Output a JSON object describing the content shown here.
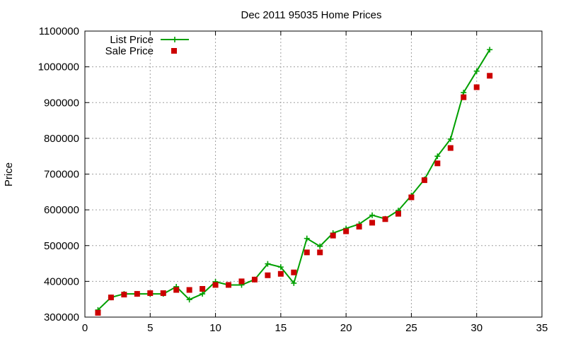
{
  "chart_data": {
    "type": "line",
    "title": "Dec 2011 95035 Home Prices",
    "xlabel": "",
    "ylabel": "Price",
    "xlim": [
      0,
      35
    ],
    "ylim": [
      300000,
      1100000
    ],
    "x_ticks": [
      0,
      5,
      10,
      15,
      20,
      25,
      30,
      35
    ],
    "y_ticks": [
      300000,
      400000,
      500000,
      600000,
      700000,
      800000,
      900000,
      1000000,
      1100000
    ],
    "grid": true,
    "legend_position": "top-left",
    "series": [
      {
        "name": "List Price",
        "style": "line-with-plus-markers",
        "color": "#00a000",
        "points": [
          [
            1,
            320000
          ],
          [
            2,
            355000
          ],
          [
            3,
            365000
          ],
          [
            4,
            365000
          ],
          [
            5,
            365000
          ],
          [
            6,
            365000
          ],
          [
            7,
            385000
          ],
          [
            8,
            349000
          ],
          [
            9,
            365000
          ],
          [
            10,
            399000
          ],
          [
            11,
            390000
          ],
          [
            12,
            390000
          ],
          [
            13,
            405000
          ],
          [
            14,
            449000
          ],
          [
            15,
            440000
          ],
          [
            16,
            395000
          ],
          [
            17,
            520000
          ],
          [
            18,
            498000
          ],
          [
            19,
            535000
          ],
          [
            20,
            548000
          ],
          [
            21,
            560000
          ],
          [
            22,
            585000
          ],
          [
            23,
            575000
          ],
          [
            24,
            598000
          ],
          [
            25,
            640000
          ],
          [
            26,
            685000
          ],
          [
            27,
            750000
          ],
          [
            28,
            798000
          ],
          [
            29,
            928000
          ],
          [
            30,
            988000
          ],
          [
            31,
            1048000
          ]
        ]
      },
      {
        "name": "Sale Price",
        "style": "square-markers",
        "color": "#cc0000",
        "points": [
          [
            1,
            312000
          ],
          [
            2,
            355000
          ],
          [
            3,
            363000
          ],
          [
            4,
            365000
          ],
          [
            5,
            367000
          ],
          [
            6,
            367000
          ],
          [
            7,
            376000
          ],
          [
            8,
            376000
          ],
          [
            9,
            379000
          ],
          [
            10,
            390000
          ],
          [
            11,
            390000
          ],
          [
            12,
            400000
          ],
          [
            13,
            405000
          ],
          [
            14,
            417000
          ],
          [
            15,
            421000
          ],
          [
            16,
            425000
          ],
          [
            17,
            481000
          ],
          [
            18,
            481000
          ],
          [
            19,
            528000
          ],
          [
            20,
            540000
          ],
          [
            21,
            553000
          ],
          [
            22,
            564000
          ],
          [
            23,
            574000
          ],
          [
            24,
            589000
          ],
          [
            25,
            635000
          ],
          [
            26,
            683000
          ],
          [
            27,
            730000
          ],
          [
            28,
            773000
          ],
          [
            29,
            915000
          ],
          [
            30,
            943000
          ],
          [
            31,
            975000
          ]
        ]
      }
    ]
  }
}
